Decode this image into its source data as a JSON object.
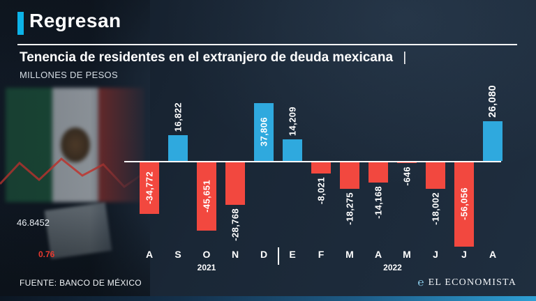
{
  "header": {
    "title": "Regresan"
  },
  "chart": {
    "subtitle": "Tenencia de residentes en el extranjero de deuda mexicana",
    "divider": "|",
    "units": "MILLONES DE PESOS"
  },
  "chart_data": {
    "type": "bar",
    "title": "Tenencia de residentes en el extranjero de deuda mexicana",
    "ylabel": "MILLONES DE PESOS",
    "xlabel": "",
    "categories": [
      "A",
      "S",
      "O",
      "N",
      "D",
      "E",
      "F",
      "M",
      "A",
      "M",
      "J",
      "J",
      "A"
    ],
    "values": [
      -34772,
      16822,
      -45651,
      -28768,
      37806,
      14209,
      -8021,
      -18275,
      -14168,
      -646,
      -18002,
      -56056,
      26080
    ],
    "labels": [
      "-34,772",
      "16,822",
      "-45,651",
      "-28,768",
      "37,806",
      "14,209",
      "-8,021",
      "-18,275",
      "-14,168",
      "-646",
      "-18,002",
      "-56,056",
      "26,080"
    ],
    "year_groups": [
      {
        "label": "2021",
        "span": [
          0,
          4
        ]
      },
      {
        "label": "2022",
        "span": [
          5,
          12
        ]
      }
    ],
    "highlight_index": 12,
    "positive_color": "#2fa9de",
    "negative_color": "#f2483f",
    "ylim": [
      -60000,
      42000
    ],
    "grid": false,
    "legend": "none"
  },
  "background": {
    "rate": "46.8452",
    "rate2": "0.76"
  },
  "footer": {
    "source": "FUENTE: BANCO DE MÉXICO",
    "brand_mark": "℮",
    "brand": "EL ECONOMISTA"
  }
}
